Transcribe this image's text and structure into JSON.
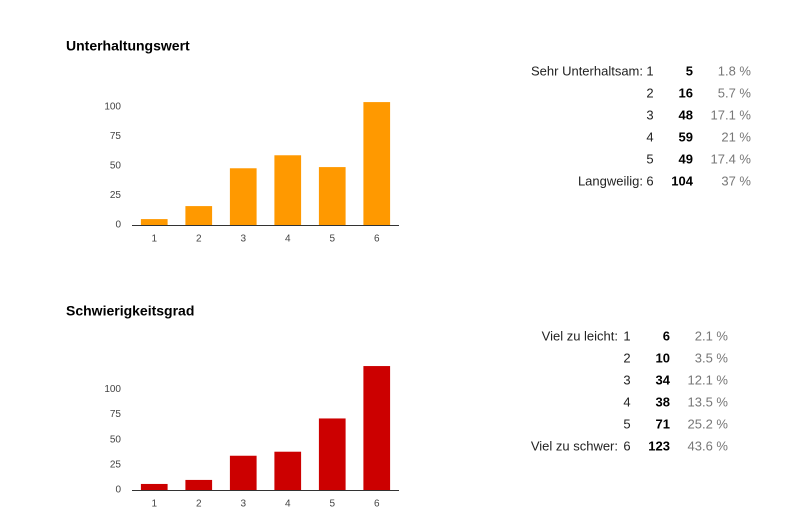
{
  "chart_data": [
    {
      "type": "bar",
      "title": "Unterhaltungswert",
      "categories": [
        "1",
        "2",
        "3",
        "4",
        "5",
        "6"
      ],
      "values": [
        5,
        16,
        48,
        59,
        49,
        104
      ],
      "color": "#ff9900",
      "ylim": [
        0,
        110
      ],
      "yticks": [
        0,
        25,
        50,
        75,
        100
      ],
      "table": [
        {
          "label": "Sehr Unterhaltsam:",
          "percent": "1.8 %"
        },
        {
          "percent": "5.7 %"
        },
        {
          "percent": "17.1 %"
        },
        {
          "percent": "21 %"
        },
        {
          "percent": "17.4 %"
        },
        {
          "label": "Langweilig:",
          "percent": "37 %"
        }
      ]
    },
    {
      "type": "bar",
      "title": "Schwierigkeitsgrad",
      "categories": [
        "1",
        "2",
        "3",
        "4",
        "5",
        "6"
      ],
      "values": [
        6,
        10,
        34,
        38,
        71,
        123
      ],
      "color": "#cc0000",
      "ylim": [
        0,
        130
      ],
      "yticks": [
        0,
        25,
        50,
        75,
        100
      ],
      "table": [
        {
          "label": "Viel zu leicht:",
          "percent": "2.1 %"
        },
        {
          "percent": "3.5 %"
        },
        {
          "percent": "12.1 %"
        },
        {
          "percent": "13.5 %"
        },
        {
          "percent": "25.2 %"
        },
        {
          "label": "Viel zu schwer:",
          "percent": "43.6 %"
        }
      ]
    }
  ]
}
